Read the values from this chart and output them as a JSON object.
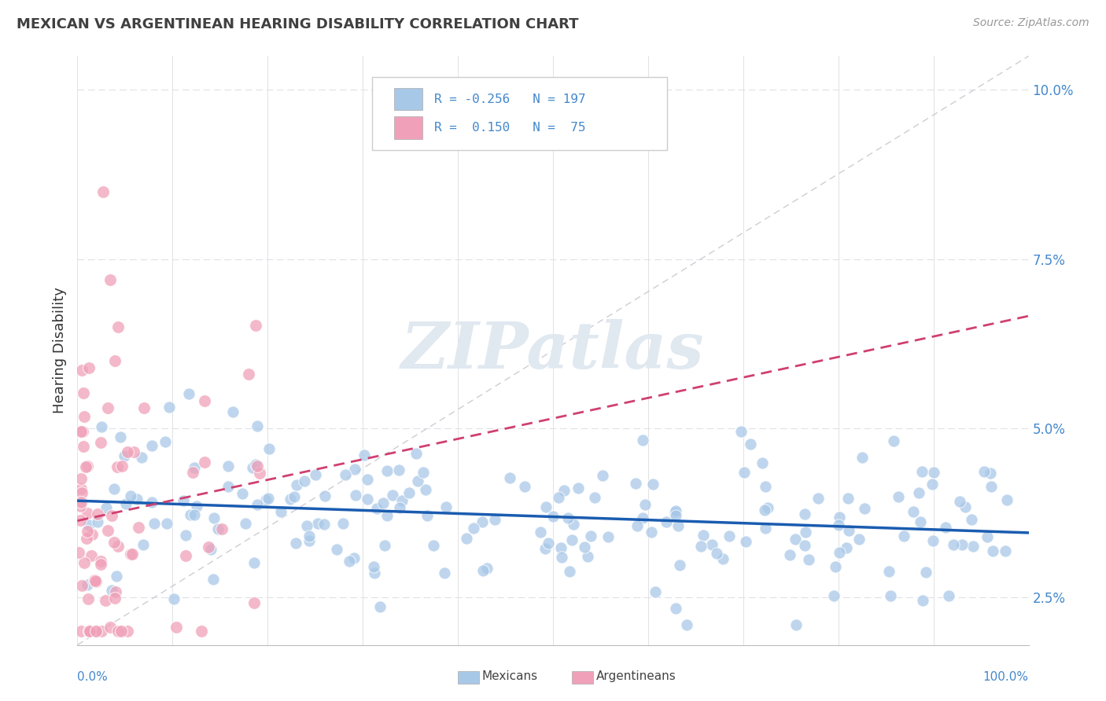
{
  "title": "MEXICAN VS ARGENTINEAN HEARING DISABILITY CORRELATION CHART",
  "source": "Source: ZipAtlas.com",
  "ylabel": "Hearing Disability",
  "xlim": [
    0.0,
    1.0
  ],
  "ylim": [
    0.018,
    0.105
  ],
  "blue_R": -0.256,
  "blue_N": 197,
  "pink_R": 0.15,
  "pink_N": 75,
  "blue_color": "#A8C8E8",
  "pink_color": "#F0A0B8",
  "blue_line_color": "#1A5CB0",
  "pink_line_color": "#D04070",
  "ref_line_color": "#C8C8D0",
  "background_color": "#FFFFFF",
  "watermark_color": "#E0E8F0",
  "grid_color": "#E0E0E8",
  "ytick_vals": [
    0.025,
    0.05,
    0.075,
    0.1
  ],
  "ytick_labels": [
    "2.5%",
    "5.0%",
    "7.5%",
    "10.0%"
  ],
  "seed": 42
}
